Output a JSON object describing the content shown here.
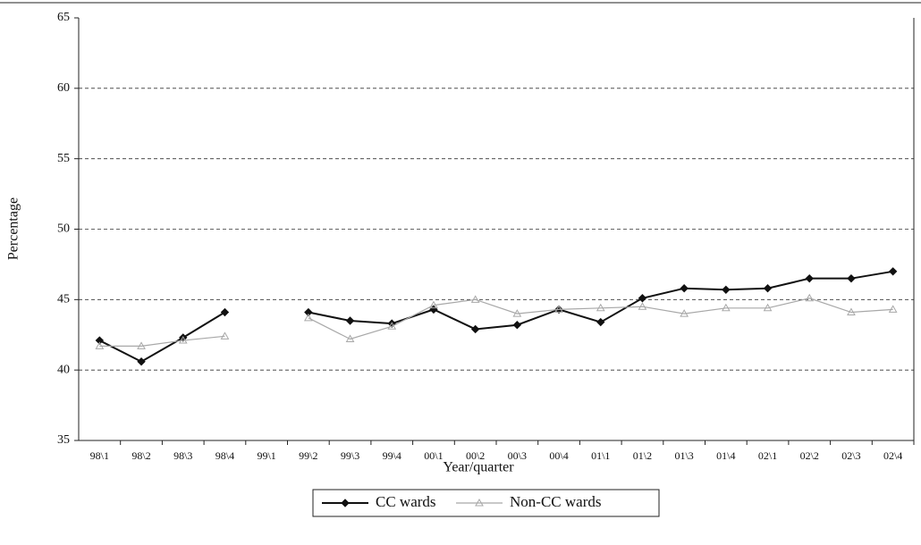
{
  "chart_data": {
    "type": "line",
    "x_label": "Year/quarter",
    "y_label": "Percentage",
    "categories": [
      "98\\1",
      "98\\2",
      "98\\3",
      "98\\4",
      "99\\1",
      "99\\2",
      "99\\3",
      "99\\4",
      "00\\1",
      "00\\2",
      "00\\3",
      "00\\4",
      "01\\1",
      "01\\2",
      "01\\3",
      "01\\4",
      "02\\1",
      "02\\2",
      "02\\3",
      "02\\4"
    ],
    "series": [
      {
        "name": "CC wards",
        "color": "#111111",
        "values": [
          42.1,
          40.6,
          42.3,
          44.1,
          null,
          44.1,
          43.5,
          43.3,
          44.3,
          42.9,
          43.2,
          44.3,
          43.4,
          45.1,
          45.8,
          45.7,
          45.8,
          46.5,
          46.5,
          47.0
        ]
      },
      {
        "name": "Non-CC wards",
        "color": "#a8a8a8",
        "values": [
          41.7,
          41.7,
          42.1,
          42.4,
          null,
          43.7,
          42.2,
          43.1,
          44.6,
          45.0,
          44.0,
          44.3,
          44.4,
          44.5,
          44.0,
          44.4,
          44.4,
          45.1,
          44.1,
          44.3
        ]
      }
    ],
    "ylim": [
      35,
      65
    ],
    "yticks": [
      35,
      40,
      45,
      50,
      55,
      60,
      65
    ],
    "grid": true
  }
}
